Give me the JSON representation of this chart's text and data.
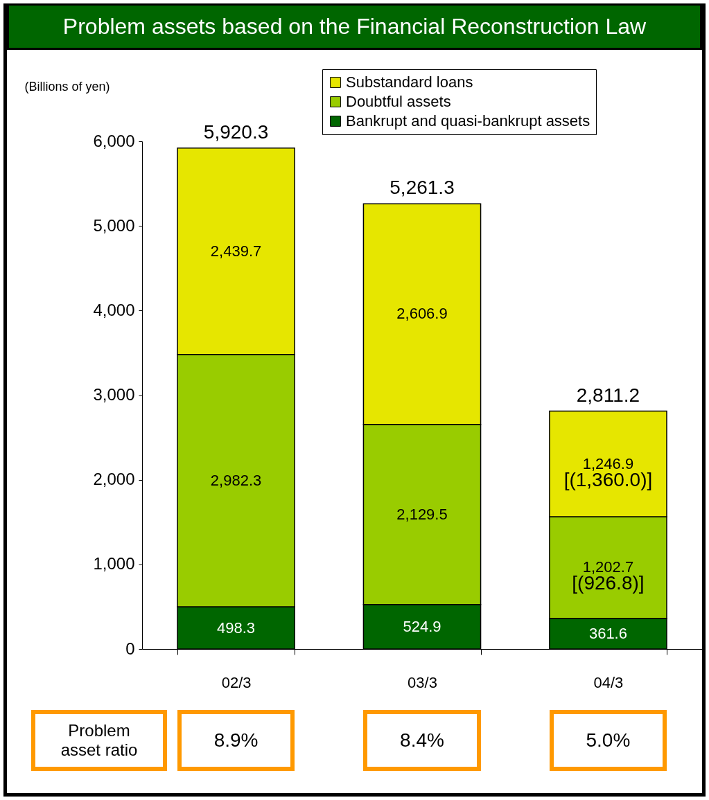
{
  "chart_data": {
    "type": "bar",
    "title": "Problem assets based on the Financial Reconstruction Law",
    "ylabel": "(Billions of yen)",
    "categories": [
      "02/3",
      "03/3",
      "04/3"
    ],
    "stacked": true,
    "series": [
      {
        "name": "Bankrupt and quasi-bankrupt assets",
        "color": "#006600",
        "values": [
          498.3,
          524.9,
          361.6
        ],
        "value_labels": [
          "498.3",
          "524.9",
          "361.6"
        ]
      },
      {
        "name": "Doubtful assets",
        "color": "#99cc00",
        "values": [
          2982.3,
          2129.5,
          1202.7
        ],
        "value_labels": [
          "2,982.3",
          "2,129.5",
          "1,202.7"
        ]
      },
      {
        "name": "Substandard loans",
        "color": "#e6e600",
        "values": [
          2439.7,
          2606.9,
          1246.9
        ],
        "value_labels": [
          "2,439.7",
          "2,606.9",
          "1,246.9"
        ]
      }
    ],
    "totals": [
      "5,920.3",
      "5,261.3",
      "2,811.2"
    ],
    "ylim": [
      0,
      6000
    ],
    "yticks": [
      0,
      {
        "value": 1000,
        "label": "1,000"
      },
      {
        "value": 2000,
        "label": "2,000"
      },
      {
        "value": 3000,
        "label": "3,000"
      },
      {
        "value": 4000,
        "label": "4,000"
      },
      {
        "value": 5000,
        "label": "5,000"
      },
      {
        "value": 6000,
        "label": "6,000"
      }
    ],
    "grid": false,
    "legend": "top right",
    "annotations": [
      "[(1,360.0)]",
      "[(926.8)]",
      "Problem asset ratio",
      "8.9%",
      "8.4%",
      "5.0%"
    ]
  }
}
